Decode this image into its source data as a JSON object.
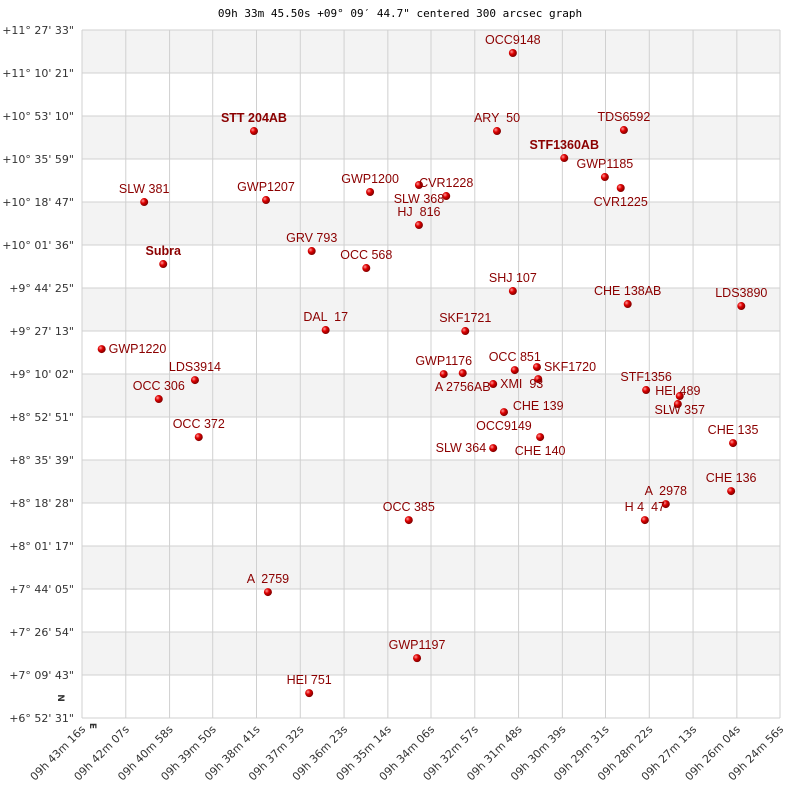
{
  "chart_data": {
    "type": "scatter",
    "title": "09h 33m 45.50s +09° 09′ 44.7\" centered 300 arcsec graph",
    "x_axis": {
      "ticks": [
        "09h 43m 16s",
        "09h 42m 07s",
        "09h 40m 58s",
        "09h 39m 50s",
        "09h 38m 41s",
        "09h 37m 32s",
        "09h 36m 23s",
        "09h 35m 14s",
        "09h 34m 06s",
        "09h 32m 57s",
        "09h 31m 48s",
        "09h 30m 39s",
        "09h 29m 31s",
        "09h 28m 22s",
        "09h 27m 13s",
        "09h 26m 04s",
        "09h 24m 56s"
      ],
      "range": [
        "09h 43m 16s",
        "09h 24m 56s"
      ],
      "direction": "decreasing to the right"
    },
    "y_axis": {
      "ticks": [
        "+11° 27' 33\"",
        "+11° 10' 21\"",
        "+10° 53' 10\"",
        "+10° 35' 59\"",
        "+10° 18' 47\"",
        "+10° 01' 36\"",
        "+9° 44' 25\"",
        "+9° 27' 13\"",
        "+9° 10' 02\"",
        "+8° 52' 51\"",
        "+8° 35' 39\"",
        "+8° 18' 28\"",
        "+8° 01' 17\"",
        "+7° 44' 05\"",
        "+7° 26' 54\"",
        "+7° 09' 43\"",
        "+6° 52' 31\""
      ],
      "range": [
        "+6° 52' 31\"",
        "+11° 27' 33\""
      ]
    },
    "grid": true,
    "compass": {
      "north": "N",
      "east": "E"
    },
    "colors": {
      "point": "#dd0000",
      "label": "#8b0000",
      "band": "#f3f3f3",
      "grid": "#d0d0d0"
    },
    "points": [
      {
        "name": "OCC9148",
        "ra": "09h 31m 57s",
        "dec": "+11° 18' 21\""
      },
      {
        "name": "STT 204AB",
        "ra": "09h 38m 45s",
        "dec": "+10° 47' 10\"",
        "bold": true
      },
      {
        "name": "ARY  50",
        "ra": "09h 32m 22s",
        "dec": "+10° 47' 10\""
      },
      {
        "name": "TDS6592",
        "ra": "09h 29m 02s",
        "dec": "+10° 47' 34\""
      },
      {
        "name": "STF1360AB",
        "ra": "09h 30m 36s",
        "dec": "+10° 36' 22\"",
        "bold": true
      },
      {
        "name": "GWP1185",
        "ra": "09h 29m 32s",
        "dec": "+10° 28' 46\""
      },
      {
        "name": "CVR1225",
        "ra": "09h 29m 07s",
        "dec": "+10° 24' 23\""
      },
      {
        "name": "SLW 381",
        "ra": "09h 41m 38s",
        "dec": "+10° 18' 47\""
      },
      {
        "name": "GWP1207",
        "ra": "09h 38m 26s",
        "dec": "+10° 19' 35\""
      },
      {
        "name": "GWP1200",
        "ra": "09h 35m 42s",
        "dec": "+10° 22' 47\""
      },
      {
        "name": "SLW 368",
        "ra": "09h 34m 25s",
        "dec": "+10° 25' 35\""
      },
      {
        "name": "CVR1228",
        "ra": "09h 33m 42s",
        "dec": "+10° 21' 11\""
      },
      {
        "name": "HJ  816",
        "ra": "09h 34m 25s",
        "dec": "+10° 09' 35\""
      },
      {
        "name": "Subra",
        "ra": "09h 41m 08s",
        "dec": "+9° 53' 59\"",
        "bold": true
      },
      {
        "name": "GRV 793",
        "ra": "09h 37m 14s",
        "dec": "+9° 59' 11\""
      },
      {
        "name": "OCC 568",
        "ra": "09h 35m 48s",
        "dec": "+9° 52' 23\""
      },
      {
        "name": "SHJ 107",
        "ra": "09h 31m 57s",
        "dec": "+9° 43' 12\""
      },
      {
        "name": "CHE 138AB",
        "ra": "09h 28m 56s",
        "dec": "+9° 38' 00\""
      },
      {
        "name": "LDS3890",
        "ra": "09h 25m 57s",
        "dec": "+9° 37' 12\""
      },
      {
        "name": "DAL  17",
        "ra": "09h 36m 52s",
        "dec": "+9° 27' 36\""
      },
      {
        "name": "SKF1721",
        "ra": "09h 33m 12s",
        "dec": "+9° 27' 12\""
      },
      {
        "name": "GWP1220",
        "ra": "09h 42m 45s",
        "dec": "+9° 20' 00\""
      },
      {
        "name": "GWP1176",
        "ra": "09h 33m 46s",
        "dec": "+9° 10' 00\""
      },
      {
        "name": "A 2756AB",
        "ra": "09h 33m 16s",
        "dec": "+9° 10' 24\""
      },
      {
        "name": "XMI  93",
        "ra": "09h 32m 28s",
        "dec": "+9° 06' 01\""
      },
      {
        "name": "OCC 851",
        "ra": "09h 31m 54s",
        "dec": "+9° 11' 36\""
      },
      {
        "name": "SKF1720",
        "ra": "09h 31m 19s",
        "dec": "+9° 12' 48\""
      },
      {
        "name": "CHE 139",
        "ra": "09h 31m 17s",
        "dec": "+9° 08' 00\""
      },
      {
        "name": "LDS3914",
        "ra": "09h 40m 18s",
        "dec": "+9° 07' 36\""
      },
      {
        "name": "OCC 306",
        "ra": "09h 41m 15s",
        "dec": "+9° 00' 01\""
      },
      {
        "name": "STF1356",
        "ra": "09h 28m 27s",
        "dec": "+9° 03' 37\""
      },
      {
        "name": "SLW 357",
        "ra": "09h 27m 34s",
        "dec": "+9° 01' 13\""
      },
      {
        "name": "HEI 489",
        "ra": "09h 27m 37s",
        "dec": "+8° 58' 01\""
      },
      {
        "name": "OCC9149",
        "ra": "09h 32m 11s",
        "dec": "+8° 54' 49\""
      },
      {
        "name": "OCC 372",
        "ra": "09h 40m 12s",
        "dec": "+8° 44' 49\""
      },
      {
        "name": "CHE 140",
        "ra": "09h 31m 14s",
        "dec": "+8° 44' 49\""
      },
      {
        "name": "SLW 364",
        "ra": "09h 32m 28s",
        "dec": "+8° 40' 25\""
      },
      {
        "name": "CHE 135",
        "ra": "09h 26m 10s",
        "dec": "+8° 42' 25\""
      },
      {
        "name": "CHE 136",
        "ra": "09h 26m 13s",
        "dec": "+8° 23' 14\""
      },
      {
        "name": "A  2978",
        "ra": "09h 27m 56s",
        "dec": "+8° 18' 02\""
      },
      {
        "name": "H 4  47",
        "ra": "09h 28m 29s",
        "dec": "+8° 11' 38\""
      },
      {
        "name": "OCC 385",
        "ra": "09h 34m 41s",
        "dec": "+8° 11' 38\""
      },
      {
        "name": "A  2759",
        "ra": "09h 38m 23s",
        "dec": "+7° 42' 51\""
      },
      {
        "name": "GWP1197",
        "ra": "09h 34m 28s",
        "dec": "+7° 16' 27\""
      },
      {
        "name": "HEI 751",
        "ra": "09h 37m 18s",
        "dec": "+7° 02' 28\""
      }
    ]
  }
}
